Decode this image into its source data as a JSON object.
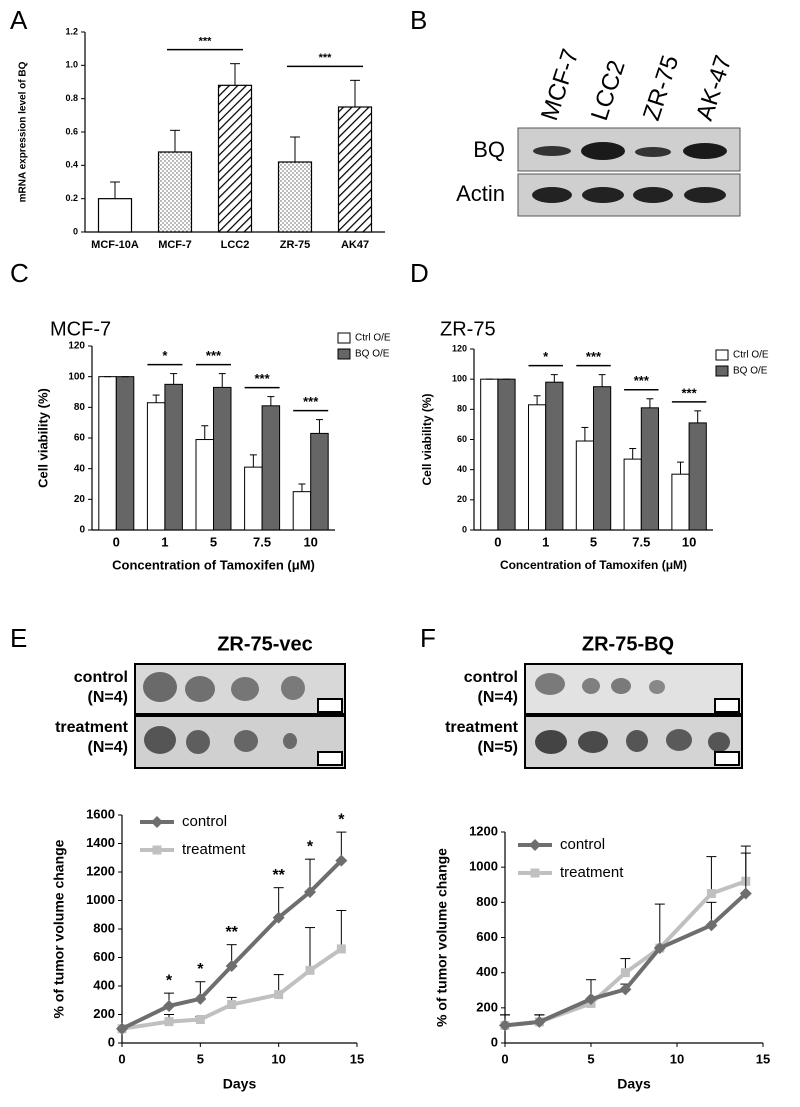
{
  "panel_labels": [
    "A",
    "B",
    "C",
    "D",
    "E",
    "F"
  ],
  "blot": {
    "lanes": [
      "MCF-7",
      "LCC2",
      "ZR-75",
      "AK-47"
    ],
    "rows": [
      "BQ",
      "Actin"
    ]
  },
  "photos": [
    {
      "title": "ZR-75-vec",
      "rows": [
        {
          "label": "control",
          "n": "(N=4)"
        },
        {
          "label": "treatment",
          "n": "(N=4)"
        }
      ]
    },
    {
      "title": "ZR-75-BQ",
      "rows": [
        {
          "label": "control",
          "n": "(N=4)"
        },
        {
          "label": "treatment",
          "n": "(N=5)"
        }
      ]
    }
  ],
  "chart_data": [
    {
      "type": "bar",
      "ylabel": "mRNA expression level of BQ",
      "categories": [
        "MCF-10A",
        "MCF-7",
        "LCC2",
        "ZR-75",
        "AK47"
      ],
      "values": [
        0.2,
        0.48,
        0.88,
        0.42,
        0.75
      ],
      "errors": [
        0.1,
        0.13,
        0.13,
        0.15,
        0.16
      ],
      "patterns": [
        "none",
        "dots",
        "hatch",
        "dots",
        "hatch"
      ],
      "color": "#ffffff",
      "significance": [
        null,
        null,
        "***",
        null,
        "***"
      ],
      "ylim": [
        0,
        1.2
      ],
      "yticks": [
        0,
        0.2,
        0.4,
        0.6,
        0.8,
        {
          "value": 1,
          "label": "1.0"
        },
        1.2
      ]
    },
    {
      "type": "bar",
      "title": "MCF-7",
      "ylabel": "Cell viability (%)",
      "xlabel": "Concentration of Tamoxifen (μM)",
      "categories": [
        "0",
        "1",
        "5",
        "7.5",
        "10"
      ],
      "series": [
        {
          "name": "Ctrl O/E",
          "color": "#ffffff",
          "values": [
            100,
            83,
            59,
            41,
            25
          ],
          "errors": [
            0,
            5,
            9,
            8,
            5
          ]
        },
        {
          "name": "BQ O/E",
          "color": "#666666",
          "values": [
            100,
            95,
            93,
            81,
            63
          ],
          "errors": [
            0,
            7,
            9,
            6,
            9
          ]
        }
      ],
      "significance": [
        null,
        "*",
        "***",
        "***",
        "***"
      ],
      "legend": "top-right",
      "ylim": [
        0,
        120
      ],
      "yticks": [
        0,
        20,
        40,
        60,
        80,
        100,
        120
      ]
    },
    {
      "type": "bar",
      "title": "ZR-75",
      "ylabel": "Cell viability (%)",
      "xlabel": "Concentration of Tamoxifen (μM)",
      "categories": [
        "0",
        "1",
        "5",
        "7.5",
        "10"
      ],
      "series": [
        {
          "name": "Ctrl O/E",
          "color": "#ffffff",
          "values": [
            100,
            83,
            59,
            47,
            37
          ],
          "errors": [
            0,
            6,
            9,
            7,
            8
          ]
        },
        {
          "name": "BQ O/E",
          "color": "#666666",
          "values": [
            100,
            98,
            95,
            81,
            71
          ],
          "errors": [
            0,
            5,
            8,
            6,
            8
          ]
        }
      ],
      "significance": [
        null,
        "*",
        "***",
        "***",
        "***"
      ],
      "legend": "top-right",
      "ylim": [
        0,
        120
      ],
      "yticks": [
        0,
        20,
        40,
        60,
        80,
        100,
        120
      ]
    },
    {
      "type": "line",
      "ylabel": "% of tumor volume change",
      "xlabel": "Days",
      "x": [
        0,
        3,
        5,
        7,
        10,
        12,
        14
      ],
      "series": [
        {
          "name": "control",
          "color": "#6e6e6e",
          "marker": "diamond",
          "values": [
            100,
            260,
            310,
            540,
            880,
            1060,
            1280
          ],
          "errors": [
            0,
            90,
            120,
            150,
            210,
            230,
            200
          ]
        },
        {
          "name": "treatment",
          "color": "#c0c0c0",
          "marker": "square",
          "values": [
            100,
            150,
            165,
            270,
            340,
            510,
            660
          ],
          "errors": [
            0,
            50,
            20,
            50,
            140,
            300,
            270
          ]
        }
      ],
      "significance": [
        null,
        "*",
        "*",
        "**",
        "**",
        "*",
        "*"
      ],
      "legend": "top-left",
      "xlim": [
        0,
        15
      ],
      "xticks": [
        0,
        5,
        10,
        15
      ],
      "ylim": [
        0,
        1600
      ],
      "yticks": [
        0,
        200,
        400,
        600,
        800,
        1000,
        1200,
        1400,
        1600
      ]
    },
    {
      "type": "line",
      "ylabel": "% of tumor volume change",
      "xlabel": "Days",
      "x": [
        0,
        2,
        5,
        7,
        9,
        12,
        14
      ],
      "series": [
        {
          "name": "control",
          "color": "#6e6e6e",
          "marker": "diamond",
          "values": [
            100,
            120,
            250,
            305,
            540,
            670,
            850
          ],
          "errors": [
            60,
            40,
            110,
            30,
            0,
            130,
            230
          ]
        },
        {
          "name": "treatment",
          "color": "#c0c0c0",
          "marker": "square",
          "values": [
            100,
            120,
            225,
            400,
            540,
            850,
            920
          ],
          "errors": [
            60,
            40,
            20,
            80,
            250,
            210,
            200
          ]
        }
      ],
      "legend": "top-left",
      "xlim": [
        0,
        15
      ],
      "xticks": [
        0,
        5,
        10,
        15
      ],
      "ylim": [
        0,
        1200
      ],
      "yticks": [
        0,
        200,
        400,
        600,
        800,
        1000,
        1200
      ]
    }
  ]
}
